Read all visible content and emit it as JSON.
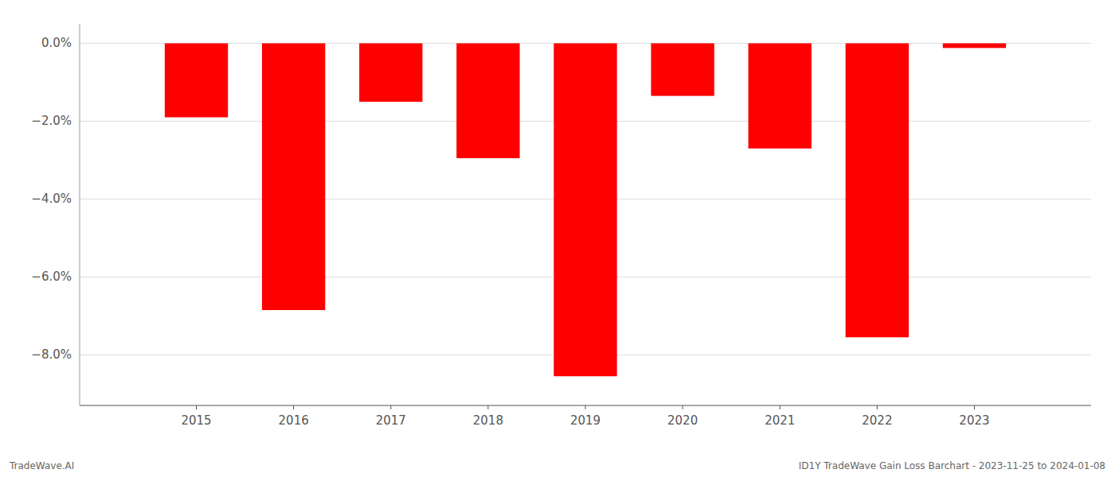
{
  "chart_data": {
    "type": "bar",
    "x": [
      2015,
      2016,
      2017,
      2018,
      2019,
      2020,
      2021,
      2022,
      2023
    ],
    "values": [
      -1.9,
      -6.85,
      -1.5,
      -2.95,
      -8.55,
      -1.35,
      -2.7,
      -7.55,
      -0.12
    ],
    "color": "#ff0000",
    "xlim": [
      2013.8,
      2024.2
    ],
    "xticks": [
      2015,
      2016,
      2017,
      2018,
      2019,
      2020,
      2021,
      2022,
      2023
    ],
    "ylim": [
      -9.3,
      0.5
    ],
    "yticks": [
      {
        "value": 0.0,
        "label": "0.0%"
      },
      {
        "value": -2.0,
        "label": "−2.0%"
      },
      {
        "value": -4.0,
        "label": "−4.0%"
      },
      {
        "value": -6.0,
        "label": "−6.0%"
      },
      {
        "value": -8.0,
        "label": "−8.0%"
      }
    ],
    "grid": true,
    "annotations": [
      "TradeWave.AI",
      "ID1Y TradeWave Gain Loss Barchart - 2023-11-25 to 2024-01-08"
    ]
  }
}
